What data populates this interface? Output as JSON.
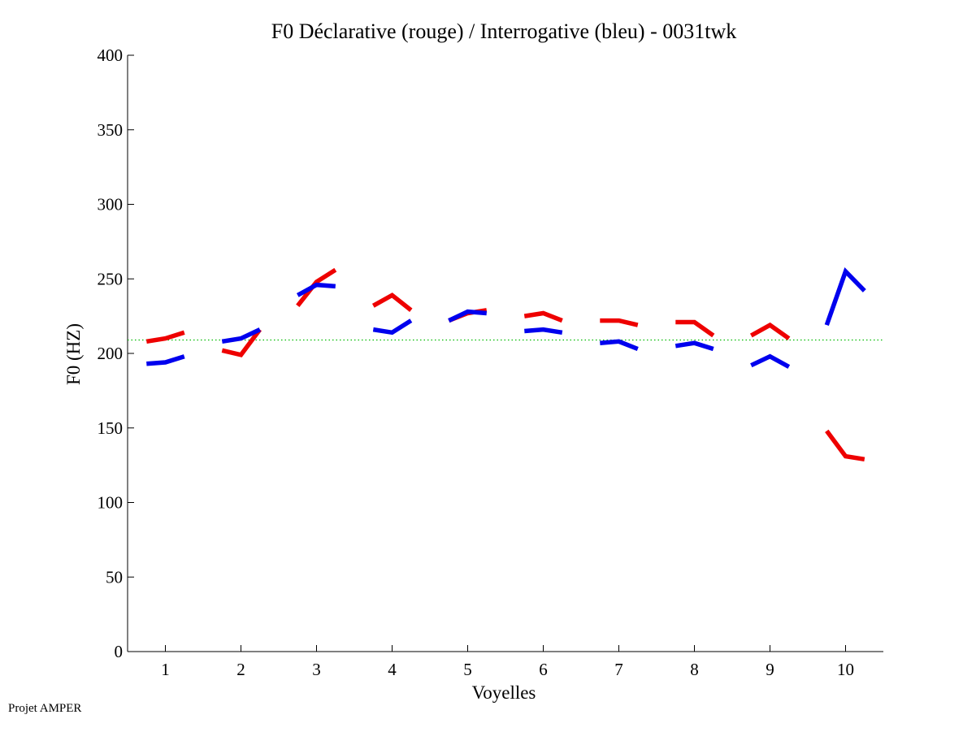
{
  "chart_data": {
    "type": "line",
    "title": "F0 Déclarative (rouge) / Interrogative (bleu) - 0031twk",
    "xlabel": "Voyelles",
    "ylabel": "F0 (HZ)",
    "xlim": [
      0.5,
      10.5
    ],
    "ylim": [
      0,
      400
    ],
    "xticks": [
      "1",
      "2",
      "3",
      "4",
      "5",
      "6",
      "7",
      "8",
      "9",
      "10"
    ],
    "yticks": [
      "0",
      "50",
      "100",
      "150",
      "200",
      "250",
      "300",
      "350",
      "400"
    ],
    "grid": false,
    "reference_line": {
      "y": 209,
      "color": "#00bb00",
      "style": "dotted"
    },
    "series": [
      {
        "color": "#ee0000",
        "segments": [
          {
            "x": [
              0.75,
              1.0,
              1.25
            ],
            "y": [
              208,
              210,
              214
            ]
          },
          {
            "x": [
              1.75,
              2.0,
              2.25
            ],
            "y": [
              202,
              199,
              216
            ]
          },
          {
            "x": [
              2.75,
              3.0,
              3.25
            ],
            "y": [
              232,
              248,
              256
            ]
          },
          {
            "x": [
              3.75,
              4.0,
              4.25
            ],
            "y": [
              232,
              239,
              229
            ]
          },
          {
            "x": [
              4.75,
              5.0,
              5.25
            ],
            "y": [
              222,
              227,
              229
            ]
          },
          {
            "x": [
              5.75,
              6.0,
              6.25
            ],
            "y": [
              225,
              227,
              222
            ]
          },
          {
            "x": [
              6.75,
              7.0,
              7.25
            ],
            "y": [
              222,
              222,
              219
            ]
          },
          {
            "x": [
              7.75,
              8.0,
              8.25
            ],
            "y": [
              221,
              221,
              212
            ]
          },
          {
            "x": [
              8.75,
              9.0,
              9.25
            ],
            "y": [
              212,
              219,
              210
            ]
          },
          {
            "x": [
              9.75,
              10.0,
              10.25
            ],
            "y": [
              148,
              131,
              129
            ]
          }
        ]
      },
      {
        "color": "#0000ee",
        "segments": [
          {
            "x": [
              0.75,
              1.0,
              1.25
            ],
            "y": [
              193,
              194,
              198
            ]
          },
          {
            "x": [
              1.75,
              2.0,
              2.25
            ],
            "y": [
              208,
              210,
              216
            ]
          },
          {
            "x": [
              2.75,
              3.0,
              3.25
            ],
            "y": [
              239,
              246,
              245
            ]
          },
          {
            "x": [
              3.75,
              4.0,
              4.25
            ],
            "y": [
              216,
              214,
              222
            ]
          },
          {
            "x": [
              4.75,
              5.0,
              5.25
            ],
            "y": [
              222,
              228,
              227
            ]
          },
          {
            "x": [
              5.75,
              6.0,
              6.25
            ],
            "y": [
              215,
              216,
              214
            ]
          },
          {
            "x": [
              6.75,
              7.0,
              7.25
            ],
            "y": [
              207,
              208,
              203
            ]
          },
          {
            "x": [
              7.75,
              8.0,
              8.25
            ],
            "y": [
              205,
              207,
              203
            ]
          },
          {
            "x": [
              8.75,
              9.0,
              9.25
            ],
            "y": [
              192,
              198,
              191
            ]
          },
          {
            "x": [
              9.75,
              10.0,
              10.25
            ],
            "y": [
              219,
              255,
              242
            ]
          }
        ]
      }
    ]
  },
  "footer": {
    "text": "Projet AMPER"
  }
}
